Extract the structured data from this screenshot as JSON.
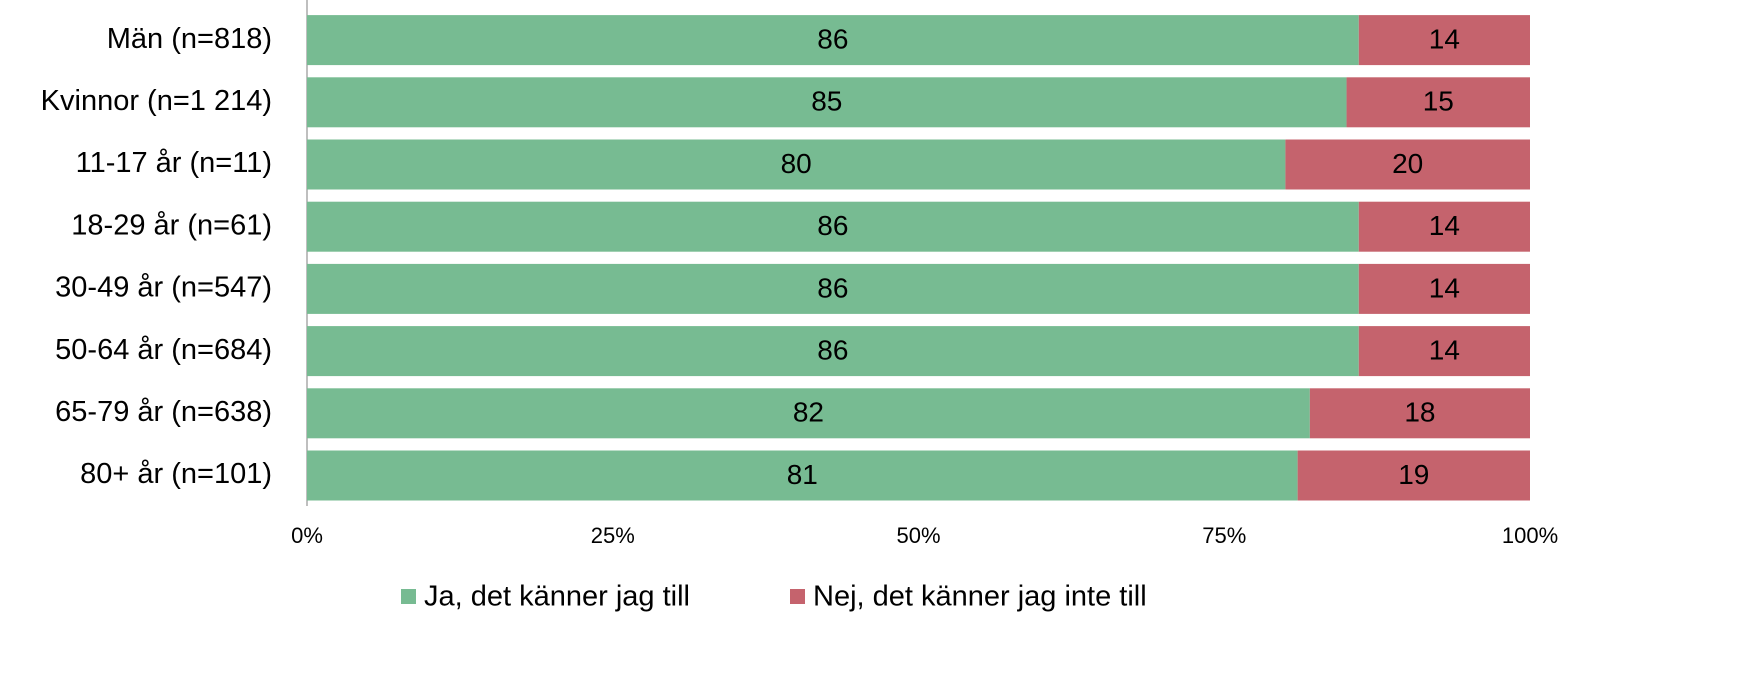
{
  "chart_data": {
    "type": "stacked_bar_horizontal",
    "categories": [
      "Män (n=818)",
      "Kvinnor (n=1 214)",
      "11-17 år (n=11)",
      "18-29 år (n=61)",
      "30-49 år (n=547)",
      "50-64 år (n=684)",
      "65-79 år (n=638)",
      "80+ år (n=101)"
    ],
    "series": [
      {
        "name": "Ja, det känner jag till",
        "color": "#77bb92",
        "values": [
          86,
          85,
          80,
          86,
          86,
          86,
          82,
          81
        ]
      },
      {
        "name": "Nej, det känner jag inte till",
        "color": "#c5636d",
        "values": [
          14,
          15,
          20,
          14,
          14,
          14,
          18,
          19
        ]
      }
    ],
    "xlim": [
      0,
      100
    ],
    "xticks": [
      {
        "value": 0,
        "label": "0%"
      },
      {
        "value": 25,
        "label": "25%"
      },
      {
        "value": 50,
        "label": "50%"
      },
      {
        "value": 75,
        "label": "75%"
      },
      {
        "value": 100,
        "label": "100%"
      }
    ],
    "legend": "bottom"
  }
}
